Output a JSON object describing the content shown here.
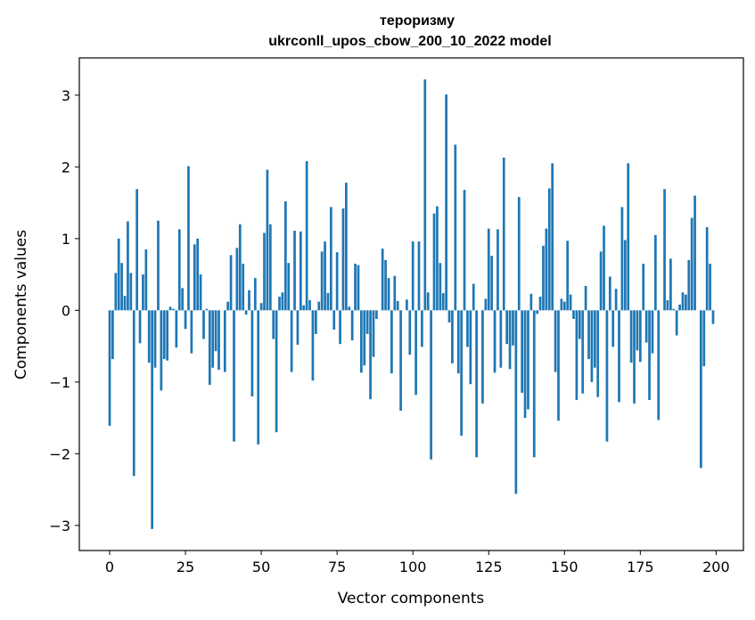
{
  "chart_data": {
    "type": "bar",
    "title_line1": "тероризму",
    "title_line2": "ukrconll_upos_cbow_200_10_2022 model",
    "xlabel": "Vector components",
    "ylabel": "Components values",
    "xlim": [
      -10,
      209
    ],
    "ylim": [
      -3.35,
      3.52
    ],
    "xticks": [
      0,
      25,
      50,
      75,
      100,
      125,
      150,
      175,
      200
    ],
    "yticks": [
      -3,
      -2,
      -1,
      0,
      1,
      2,
      3
    ],
    "ytick_labels": [
      "−3",
      "−2",
      "−1",
      "0",
      "1",
      "2",
      "3"
    ],
    "bar_color": "#1f77b4",
    "grid": false,
    "values": [
      -1.61,
      -0.68,
      0.52,
      1.0,
      0.66,
      0.2,
      1.24,
      0.52,
      -2.31,
      1.69,
      -0.46,
      0.5,
      0.85,
      -0.73,
      -3.05,
      -0.8,
      1.25,
      -1.12,
      -0.68,
      -0.7,
      0.05,
      0.02,
      -0.52,
      1.13,
      0.31,
      -0.26,
      2.01,
      -0.6,
      0.92,
      1.0,
      0.5,
      -0.4,
      0.02,
      -1.04,
      -0.8,
      -0.57,
      -0.83,
      0.0,
      -0.86,
      0.12,
      0.77,
      -1.83,
      0.87,
      1.2,
      0.65,
      -0.06,
      0.28,
      -1.2,
      0.45,
      -1.87,
      0.1,
      1.08,
      1.96,
      1.2,
      -0.4,
      -1.7,
      0.19,
      0.25,
      1.52,
      0.66,
      -0.86,
      1.11,
      -0.48,
      1.1,
      0.07,
      2.08,
      0.14,
      -0.98,
      -0.33,
      0.12,
      0.82,
      0.96,
      0.24,
      1.44,
      -0.27,
      0.81,
      -0.47,
      1.42,
      1.78,
      0.05,
      -0.42,
      0.65,
      0.63,
      -0.87,
      -0.77,
      -0.33,
      -1.24,
      -0.65,
      -0.12,
      0.0,
      0.86,
      0.7,
      0.45,
      -0.88,
      0.48,
      0.13,
      -1.4,
      0.0,
      0.15,
      -0.62,
      0.96,
      -1.18,
      0.96,
      -0.51,
      3.22,
      0.25,
      -2.08,
      1.35,
      1.45,
      0.66,
      0.24,
      3.01,
      -0.17,
      -0.74,
      2.31,
      -0.88,
      -1.75,
      1.68,
      -0.51,
      -1.03,
      0.37,
      -2.05,
      0.0,
      -1.3,
      0.16,
      1.14,
      0.76,
      -0.87,
      1.13,
      -0.8,
      2.13,
      -0.47,
      -0.82,
      -0.49,
      -2.56,
      1.58,
      -1.15,
      -1.5,
      -1.38,
      0.23,
      -2.05,
      -0.05,
      0.19,
      0.9,
      1.14,
      1.7,
      2.05,
      -0.86,
      -1.54,
      0.16,
      0.12,
      0.97,
      0.22,
      -0.12,
      -1.25,
      -0.4,
      -1.16,
      0.34,
      -0.68,
      -1.0,
      -0.8,
      -1.21,
      0.82,
      1.18,
      -1.83,
      0.47,
      -0.51,
      0.3,
      -1.28,
      1.44,
      0.98,
      2.05,
      -0.73,
      -1.3,
      -0.56,
      -0.72,
      0.65,
      -0.45,
      -1.25,
      -0.6,
      1.05,
      -1.53,
      0.0,
      1.69,
      0.14,
      0.72,
      0.02,
      -0.35,
      0.08,
      0.25,
      0.22,
      0.7,
      1.29,
      1.6,
      0.0,
      -2.2,
      -0.78,
      1.16,
      0.65,
      -0.19
    ]
  }
}
